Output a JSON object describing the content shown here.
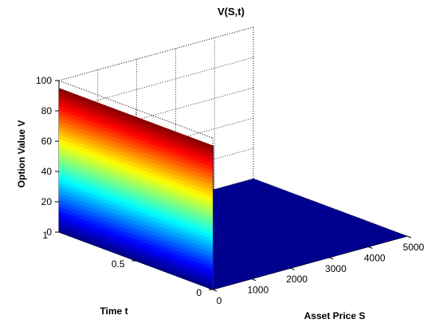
{
  "chart_data": {
    "type": "surface",
    "title": "V(S,t)",
    "xlabel": "Asset Price S",
    "ylabel": "Time t",
    "zlabel": "Option Value V",
    "xlim": [
      0,
      5000
    ],
    "ylim": [
      0,
      1
    ],
    "zlim": [
      0,
      100
    ],
    "x_ticks": [
      0,
      1000,
      2000,
      3000,
      4000,
      5000
    ],
    "y_ticks": [
      0,
      0.5,
      1
    ],
    "z_ticks": [
      0,
      20,
      40,
      60,
      80,
      100
    ],
    "x_tick_labels": [
      "0",
      "1000",
      "2000",
      "3000",
      "4000",
      "5000"
    ],
    "y_tick_labels": [
      "0",
      "0.5",
      "1"
    ],
    "z_tick_labels": [
      "0",
      "20",
      "40",
      "60",
      "80",
      "100"
    ],
    "colormap": "jet",
    "grid": true,
    "surface": {
      "description_values": "V = 95 for S near 0 at all t, drops to 0 just above S = 0; zero elsewhere",
      "max_value": 95,
      "drop_at_S": 0,
      "flat_value": 0
    }
  }
}
